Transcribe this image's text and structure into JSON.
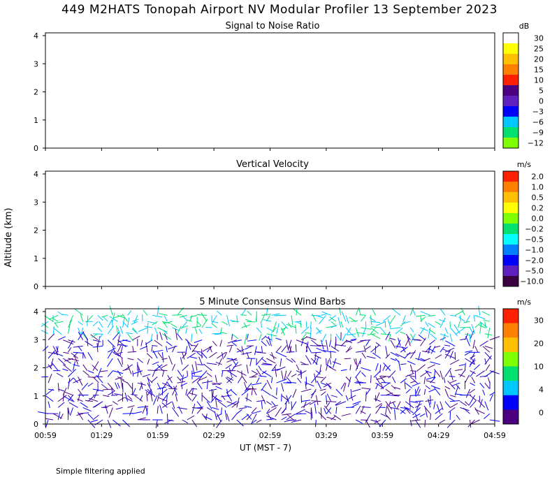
{
  "title": "449 M2HATS Tonopah Airport NV Modular Profiler 13 September 2023",
  "ylabel": "Altitude (km)",
  "xlabel": "UT  (MST - 7)",
  "footnote": "Simple filtering applied",
  "chart_data": [
    {
      "type": "heatmap",
      "title": "Signal to Noise Ratio",
      "colorbar_unit": "dB",
      "colorbar_ticks": [
        "30",
        "25",
        "20",
        "15",
        "10",
        "5",
        "0",
        "−3",
        "−6",
        "−9",
        "−12"
      ],
      "colorbar_colors": [
        "#ffffff",
        "#ffff00",
        "#ffc000",
        "#ff8000",
        "#ff2000",
        "#4b0082",
        "#6020c0",
        "#0000ff",
        "#00c8ff",
        "#00e070",
        "#80ff00"
      ],
      "y_ticks": [
        "0",
        "1",
        "2",
        "3",
        "4"
      ],
      "ylim": [
        0,
        4.1
      ],
      "x_ticks": [
        "00:59",
        "01:29",
        "01:59",
        "02:29",
        "02:59",
        "03:29",
        "03:59",
        "04:29",
        "04:59"
      ]
    },
    {
      "type": "heatmap",
      "title": "Vertical Velocity",
      "colorbar_unit": "m/s",
      "colorbar_ticks": [
        "2.0",
        "1.0",
        "0.5",
        "0.2",
        "0.0",
        "−0.2",
        "−0.5",
        "−1.0",
        "−2.0",
        "−5.0",
        "−10.0"
      ],
      "colorbar_colors": [
        "#ff2000",
        "#ff8000",
        "#ffc000",
        "#ffff00",
        "#80ff00",
        "#00e070",
        "#00ffff",
        "#0080ff",
        "#0000ff",
        "#6020c0",
        "#3a0040"
      ],
      "y_ticks": [
        "0",
        "1",
        "2",
        "3",
        "4"
      ],
      "ylim": [
        0,
        4.1
      ],
      "x_ticks": [
        "00:59",
        "01:29",
        "01:59",
        "02:29",
        "02:59",
        "03:29",
        "03:59",
        "04:29",
        "04:59"
      ]
    },
    {
      "type": "scatter",
      "title": "5 Minute Consensus Wind Barbs",
      "colorbar_unit": "m/s",
      "colorbar_ticks": [
        "30",
        "20",
        "10",
        "4",
        "0"
      ],
      "colorbar_colors": [
        "#ff2000",
        "#ff8000",
        "#ffc000",
        "#80ff00",
        "#00e070",
        "#00c8ff",
        "#0000ff",
        "#4b0082"
      ],
      "y_ticks": [
        "0",
        "1",
        "2",
        "3",
        "4"
      ],
      "ylim": [
        0,
        4.1
      ],
      "x_ticks": [
        "00:59",
        "01:29",
        "01:59",
        "02:29",
        "02:59",
        "03:29",
        "03:59",
        "04:29",
        "04:59"
      ]
    }
  ]
}
